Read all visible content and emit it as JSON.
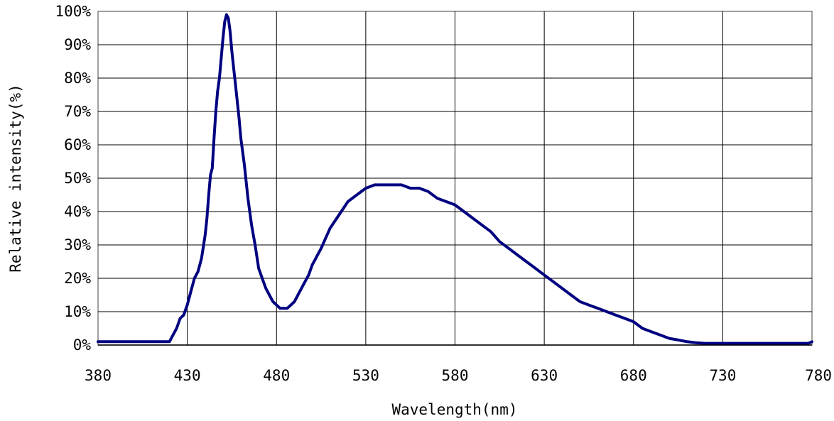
{
  "chart_data": {
    "type": "line",
    "title": "",
    "xlabel": "Wavelength(nm)",
    "ylabel": "Relative intensity(%)",
    "xlim": [
      380,
      780
    ],
    "ylim": [
      0,
      100
    ],
    "x_ticks": [
      "380",
      "430",
      "480",
      "530",
      "580",
      "630",
      "680",
      "730",
      "780"
    ],
    "y_ticks": [
      "0%",
      "10%",
      "20%",
      "30%",
      "40%",
      "50%",
      "60%",
      "70%",
      "80%",
      "90%",
      "100%"
    ],
    "grid": true,
    "legend": "none",
    "line_color": "#000080",
    "series": [
      {
        "x": [
          380,
          390,
          400,
          410,
          418,
          420,
          422,
          424,
          426,
          428,
          430,
          432,
          434,
          436,
          438,
          440,
          441,
          442,
          443,
          444,
          445,
          446,
          447,
          448,
          449,
          450,
          451,
          452,
          453,
          454,
          455,
          456,
          457,
          458,
          459,
          460,
          462,
          464,
          466,
          468,
          470,
          472,
          474,
          476,
          478,
          480,
          482,
          484,
          486,
          488,
          490,
          492,
          494,
          496,
          498,
          500,
          505,
          510,
          515,
          520,
          525,
          530,
          535,
          540,
          545,
          550,
          555,
          560,
          565,
          570,
          575,
          580,
          585,
          590,
          595,
          600,
          605,
          610,
          615,
          620,
          625,
          630,
          635,
          640,
          645,
          650,
          655,
          660,
          665,
          670,
          675,
          680,
          685,
          690,
          695,
          700,
          705,
          710,
          715,
          720,
          730,
          740,
          750,
          760,
          770,
          778,
          780
        ],
        "y": [
          1,
          1,
          1,
          1,
          1,
          1,
          3,
          5,
          8,
          9,
          12,
          16,
          20,
          22,
          26,
          33,
          38,
          45,
          51,
          53,
          62,
          70,
          76,
          80,
          86,
          92,
          97,
          99,
          98,
          94,
          88,
          83,
          78,
          73,
          68,
          62,
          54,
          44,
          36,
          30,
          23,
          20,
          17,
          15,
          13,
          12,
          11,
          11,
          11,
          12,
          13,
          15,
          17,
          19,
          21,
          24,
          29,
          35,
          39,
          43,
          45,
          47,
          48,
          48,
          48,
          48,
          47,
          47,
          46,
          44,
          43,
          42,
          40,
          38,
          36,
          34,
          31,
          29,
          27,
          25,
          23,
          21,
          19,
          17,
          15,
          13,
          12,
          11,
          10,
          9,
          8,
          7,
          5,
          4,
          3,
          2,
          1.5,
          1,
          0.7,
          0.5,
          0.5,
          0.5,
          0.5,
          0.5,
          0.5,
          0.5,
          1
        ]
      }
    ]
  }
}
